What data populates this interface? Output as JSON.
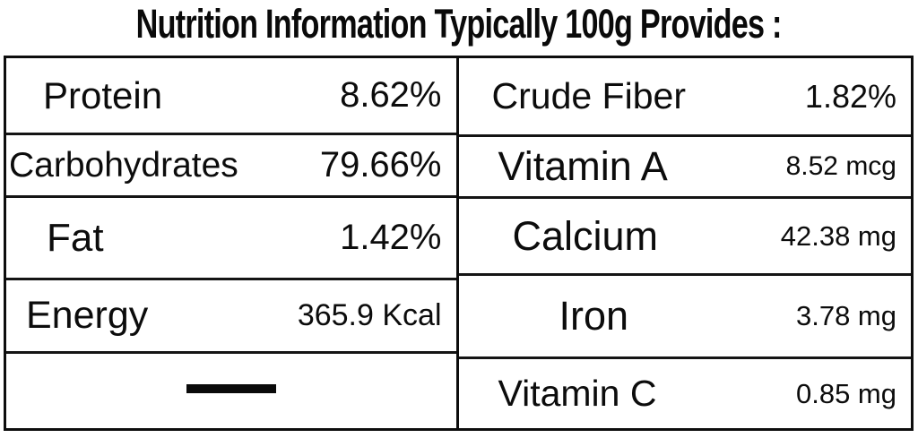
{
  "title": "Nutrition Information Typically 100g Provides :",
  "colors": {
    "background": "#ffffff",
    "text": "#0c0c0c",
    "border": "#0d0d0d"
  },
  "table": {
    "left": [
      {
        "label": "Protein",
        "value": "8.62%"
      },
      {
        "label": "Carbohydrates",
        "value": "79.66%"
      },
      {
        "label": "Fat",
        "value": "1.42%"
      },
      {
        "label": "Energy",
        "value": "365.9 Kcal"
      },
      {
        "label": "",
        "value": "—"
      }
    ],
    "right": [
      {
        "label": "Crude Fiber",
        "value": "1.82%"
      },
      {
        "label": "Vitamin A",
        "value": "8.52 mcg"
      },
      {
        "label": "Calcium",
        "value": "42.38 mg"
      },
      {
        "label": "Iron",
        "value": "3.78 mg"
      },
      {
        "label": "Vitamin C",
        "value": "0.85 mg"
      }
    ]
  }
}
